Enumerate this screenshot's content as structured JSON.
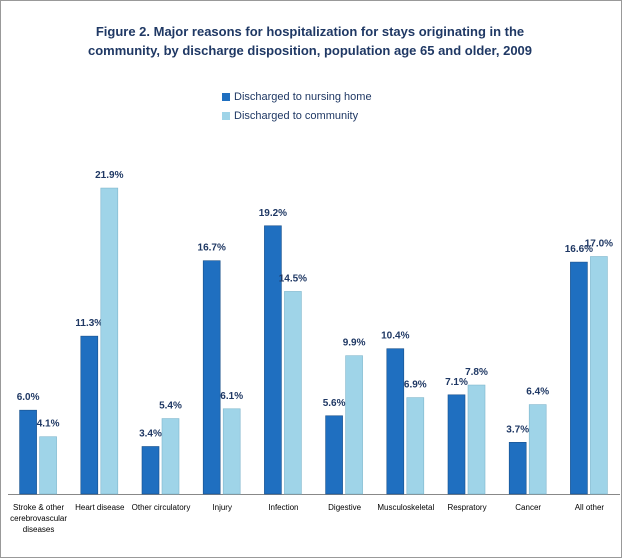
{
  "chart_data": {
    "type": "bar",
    "title": "Figure 2.  Major reasons for hospitalization for stays originating in the community,  by discharge disposition, population age 65  and older, 2009",
    "categories": [
      "Stroke & other cerebrovascular diseases",
      "Heart disease",
      "Other circulatory",
      "Injury",
      "Infection",
      "Digestive",
      "Musculoskeletal",
      "Respratory",
      "Cancer",
      "All other"
    ],
    "series": [
      {
        "name": "Discharged to nursing home",
        "color": "#1f6fc0",
        "values": [
          6.0,
          11.3,
          3.4,
          16.7,
          19.2,
          5.6,
          10.4,
          7.1,
          3.7,
          16.6
        ],
        "value_labels": [
          "6.0%",
          "11.3%",
          "3.4%",
          "16.7%",
          "19.2%",
          "5.6%",
          "10.4%",
          "7.1%",
          "3.7%",
          "16.6%"
        ]
      },
      {
        "name": "Discharged to community",
        "color": "#9fd4e8",
        "values": [
          4.1,
          21.9,
          5.4,
          6.1,
          14.5,
          9.9,
          6.9,
          7.8,
          6.4,
          17.0
        ],
        "value_labels": [
          "4.1%",
          "21.9%",
          "5.4%",
          "6.1%",
          "14.5%",
          "9.9%",
          "6.9%",
          "7.8%",
          "6.4%",
          "17.0%"
        ]
      }
    ]
  }
}
